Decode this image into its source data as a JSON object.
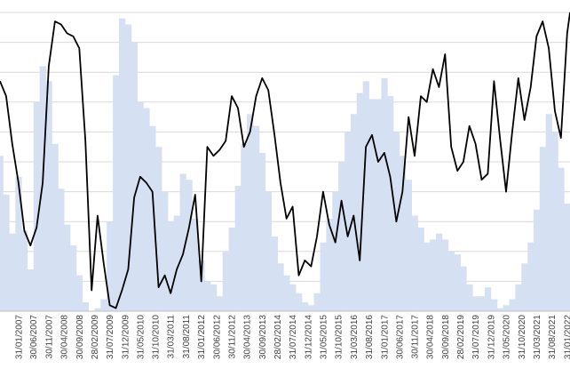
{
  "chart_data": {
    "type": "bar+line",
    "grid": true,
    "legend": "none",
    "colors": {
      "bars": "#d6e0f3",
      "line": "#000000",
      "grid": "#d9d9d9",
      "ticks": "#404040"
    },
    "ylim": [
      0,
      1
    ],
    "xlim": [
      "2006-07-31",
      "2022-02-28"
    ],
    "x_tick_labels": [
      "31/01/2007",
      "30/06/2007",
      "30/11/2007",
      "30/04/2008",
      "30/09/2008",
      "28/02/2009",
      "31/07/2009",
      "31/12/2009",
      "31/05/2010",
      "31/10/2010",
      "31/03/2011",
      "31/08/2011",
      "31/01/2012",
      "30/06/2012",
      "30/11/2012",
      "30/04/2013",
      "30/09/2013",
      "28/02/2014",
      "31/07/2014",
      "31/12/2014",
      "31/05/2015",
      "31/10/2015",
      "31/03/2016",
      "31/08/2016",
      "31/01/2017",
      "30/06/2017",
      "30/11/2017",
      "30/04/2018",
      "30/09/2018",
      "28/02/2019",
      "31/07/2019",
      "31/12/2019",
      "31/05/2020",
      "31/10/2020",
      "31/03/2021",
      "31/08/2021",
      "31/01/2022"
    ],
    "series": [
      {
        "kind": "bars",
        "x": [
          "2006-07-31",
          "2006-09-30",
          "2006-11-30",
          "2007-01-31",
          "2007-03-31",
          "2007-05-31",
          "2007-07-31",
          "2007-09-30",
          "2007-11-30",
          "2008-01-31",
          "2008-03-31",
          "2008-05-31",
          "2008-07-31",
          "2008-09-30",
          "2008-11-30",
          "2009-01-31",
          "2009-03-31",
          "2009-05-31",
          "2009-07-31",
          "2009-09-30",
          "2009-11-30",
          "2010-01-31",
          "2010-03-31",
          "2010-05-31",
          "2010-07-31",
          "2010-09-30",
          "2010-11-30",
          "2011-01-31",
          "2011-03-31",
          "2011-05-31",
          "2011-07-31",
          "2011-09-30",
          "2011-11-30",
          "2012-01-31",
          "2012-03-31",
          "2012-05-31",
          "2012-07-31",
          "2012-09-30",
          "2012-11-30",
          "2013-01-31",
          "2013-03-31",
          "2013-05-31",
          "2013-07-31",
          "2013-09-30",
          "2013-11-30",
          "2014-01-31",
          "2014-03-31",
          "2014-05-31",
          "2014-07-31",
          "2014-09-30",
          "2014-11-30",
          "2015-01-31",
          "2015-03-31",
          "2015-05-31",
          "2015-07-31",
          "2015-09-30",
          "2015-11-30",
          "2016-01-31",
          "2016-03-31",
          "2016-05-31",
          "2016-07-31",
          "2016-09-30",
          "2016-11-30",
          "2017-01-31",
          "2017-03-31",
          "2017-05-31",
          "2017-07-31",
          "2017-09-30",
          "2017-11-30",
          "2018-01-31",
          "2018-03-31",
          "2018-05-31",
          "2018-07-31",
          "2018-09-30",
          "2018-11-30",
          "2019-01-31",
          "2019-03-31",
          "2019-05-31",
          "2019-07-31",
          "2019-09-30",
          "2019-11-30",
          "2020-01-31",
          "2020-03-31",
          "2020-05-31",
          "2020-07-31",
          "2020-09-30",
          "2020-11-30",
          "2021-01-31",
          "2021-03-31",
          "2021-05-31",
          "2021-07-31",
          "2021-09-30",
          "2021-11-30",
          "2022-01-31",
          "2022-02-28"
        ],
        "values": [
          0.52,
          0.39,
          0.26,
          0.45,
          0.27,
          0.14,
          0.7,
          0.82,
          0.77,
          0.56,
          0.41,
          0.29,
          0.22,
          0.12,
          0.03,
          0.0,
          0.01,
          0.04,
          0.3,
          0.79,
          0.98,
          0.96,
          0.9,
          0.7,
          0.68,
          0.62,
          0.55,
          0.4,
          0.3,
          0.32,
          0.46,
          0.44,
          0.31,
          0.17,
          0.1,
          0.09,
          0.05,
          0.2,
          0.28,
          0.42,
          0.56,
          0.66,
          0.62,
          0.53,
          0.4,
          0.25,
          0.16,
          0.12,
          0.09,
          0.06,
          0.03,
          0.02,
          0.06,
          0.23,
          0.31,
          0.4,
          0.5,
          0.6,
          0.66,
          0.73,
          0.77,
          0.71,
          0.71,
          0.78,
          0.72,
          0.6,
          0.52,
          0.44,
          0.32,
          0.28,
          0.23,
          0.24,
          0.26,
          0.24,
          0.2,
          0.19,
          0.15,
          0.09,
          0.05,
          0.05,
          0.08,
          0.04,
          0.01,
          0.02,
          0.04,
          0.09,
          0.16,
          0.23,
          0.34,
          0.55,
          0.66,
          0.6,
          0.48,
          0.36,
          0.28
        ]
      },
      {
        "kind": "line",
        "x": [
          "2006-07-31",
          "2006-09-30",
          "2006-11-30",
          "2007-01-31",
          "2007-03-31",
          "2007-05-31",
          "2007-07-31",
          "2007-09-30",
          "2007-11-30",
          "2008-01-31",
          "2008-03-31",
          "2008-05-31",
          "2008-07-31",
          "2008-09-30",
          "2008-11-30",
          "2009-01-31",
          "2009-03-31",
          "2009-05-31",
          "2009-07-31",
          "2009-09-30",
          "2009-11-30",
          "2010-01-31",
          "2010-03-31",
          "2010-05-31",
          "2010-07-31",
          "2010-09-30",
          "2010-11-30",
          "2011-01-31",
          "2011-03-31",
          "2011-05-31",
          "2011-07-31",
          "2011-09-30",
          "2011-11-30",
          "2012-01-31",
          "2012-03-31",
          "2012-05-31",
          "2012-07-31",
          "2012-09-30",
          "2012-11-30",
          "2013-01-31",
          "2013-03-31",
          "2013-05-31",
          "2013-07-31",
          "2013-09-30",
          "2013-11-30",
          "2014-01-31",
          "2014-03-31",
          "2014-05-31",
          "2014-07-31",
          "2014-09-30",
          "2014-11-30",
          "2015-01-31",
          "2015-03-31",
          "2015-05-31",
          "2015-07-31",
          "2015-09-30",
          "2015-11-30",
          "2016-01-31",
          "2016-03-31",
          "2016-05-31",
          "2016-07-31",
          "2016-09-30",
          "2016-11-30",
          "2017-01-31",
          "2017-03-31",
          "2017-05-31",
          "2017-07-31",
          "2017-09-30",
          "2017-11-30",
          "2018-01-31",
          "2018-03-31",
          "2018-05-31",
          "2018-07-31",
          "2018-09-30",
          "2018-11-30",
          "2019-01-31",
          "2019-03-31",
          "2019-05-31",
          "2019-07-31",
          "2019-09-30",
          "2019-11-30",
          "2020-01-31",
          "2020-03-31",
          "2020-05-31",
          "2020-07-31",
          "2020-09-30",
          "2020-11-30",
          "2021-01-31",
          "2021-03-31",
          "2021-05-31",
          "2021-07-31",
          "2021-09-30",
          "2021-11-30",
          "2022-01-31",
          "2022-02-28"
        ],
        "values": [
          0.77,
          0.72,
          0.56,
          0.43,
          0.27,
          0.22,
          0.28,
          0.43,
          0.82,
          0.97,
          0.96,
          0.93,
          0.92,
          0.88,
          0.57,
          0.07,
          0.32,
          0.16,
          0.02,
          0.01,
          0.07,
          0.14,
          0.38,
          0.45,
          0.43,
          0.4,
          0.08,
          0.12,
          0.06,
          0.14,
          0.19,
          0.28,
          0.39,
          0.1,
          0.55,
          0.52,
          0.54,
          0.57,
          0.72,
          0.68,
          0.55,
          0.6,
          0.72,
          0.78,
          0.74,
          0.59,
          0.43,
          0.31,
          0.35,
          0.12,
          0.17,
          0.15,
          0.25,
          0.4,
          0.29,
          0.23,
          0.37,
          0.25,
          0.32,
          0.17,
          0.55,
          0.59,
          0.5,
          0.53,
          0.45,
          0.3,
          0.4,
          0.65,
          0.52,
          0.72,
          0.7,
          0.81,
          0.75,
          0.86,
          0.55,
          0.47,
          0.5,
          0.62,
          0.56,
          0.44,
          0.46,
          0.77,
          0.58,
          0.4,
          0.6,
          0.78,
          0.64,
          0.75,
          0.92,
          0.97,
          0.88,
          0.67,
          0.58,
          0.93,
          1.0
        ]
      }
    ]
  }
}
